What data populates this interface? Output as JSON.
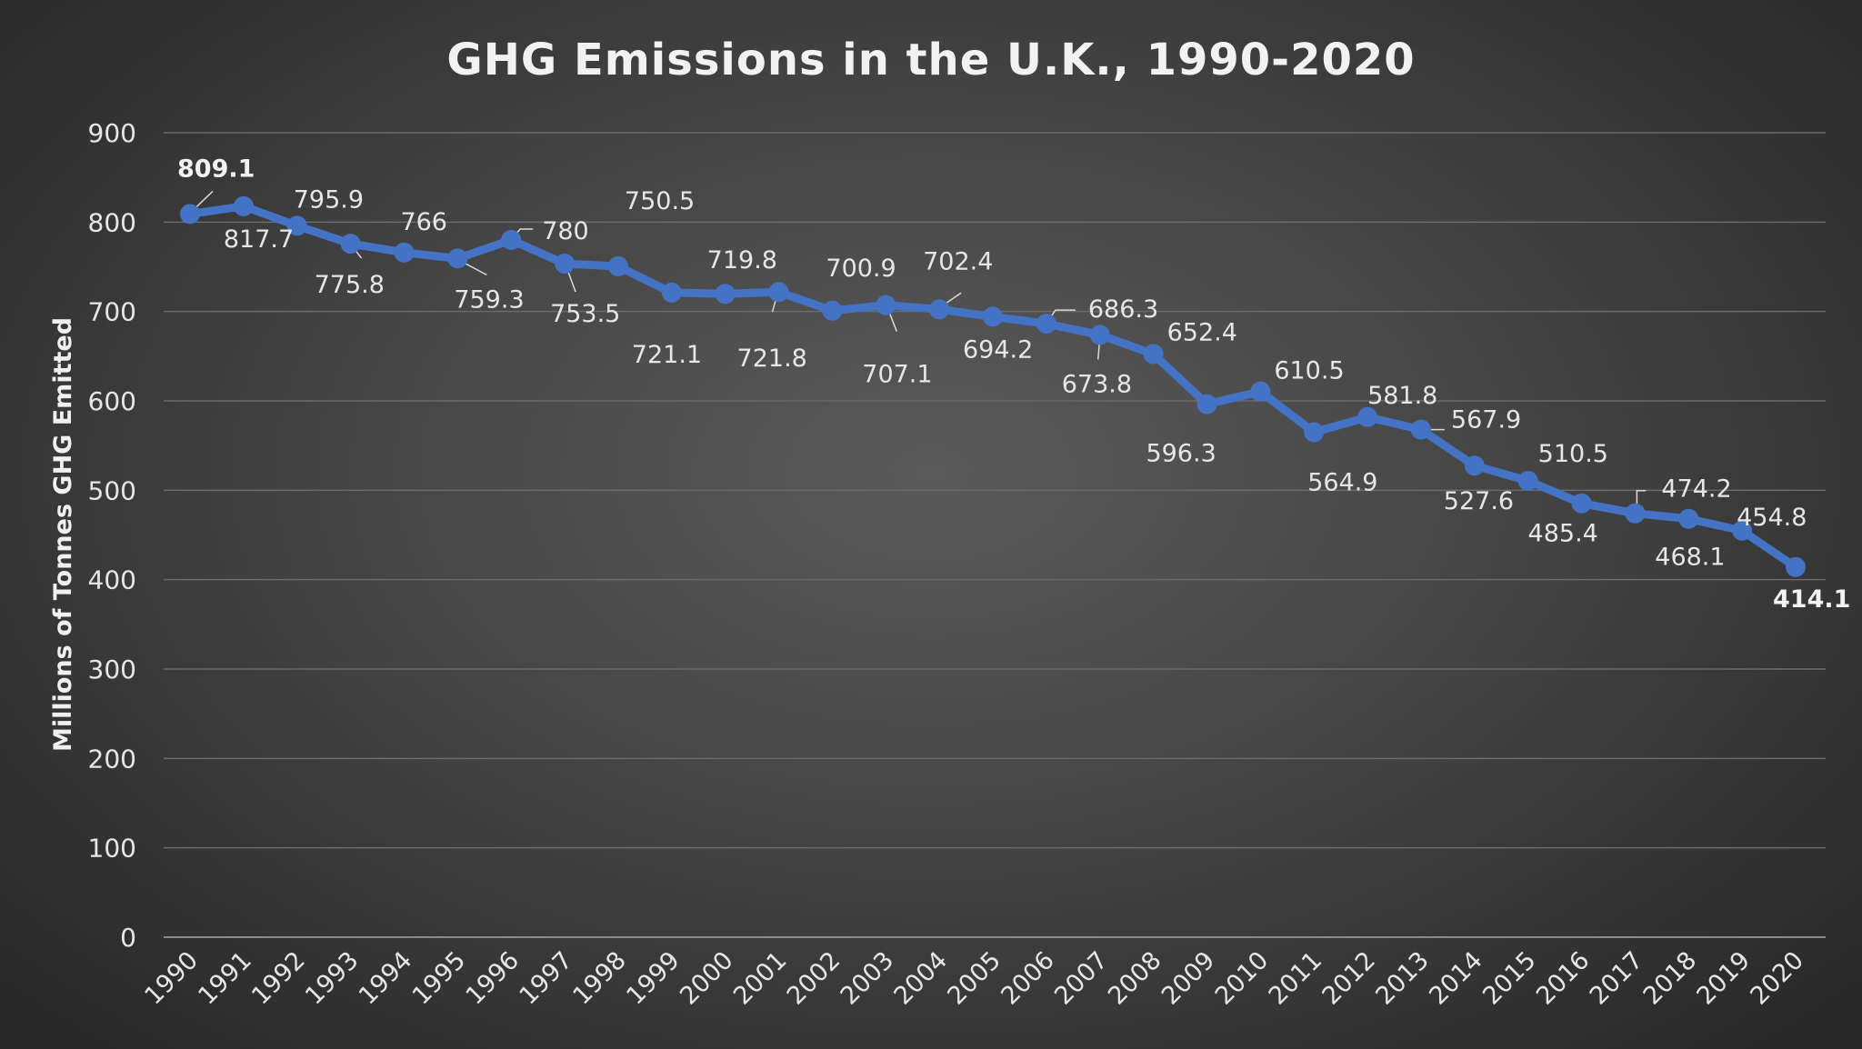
{
  "chart_data": {
    "type": "line",
    "title": "GHG Emissions in the U.K., 1990-2020",
    "xlabel": "",
    "ylabel": "Millions of Tonnes GHG Emitted",
    "ylim": [
      0,
      900
    ],
    "yticks": [
      0,
      100,
      200,
      300,
      400,
      500,
      600,
      700,
      800,
      900
    ],
    "grid": true,
    "legend": "none",
    "series_color": "#4472c4",
    "categories": [
      "1990",
      "1991",
      "1992",
      "1993",
      "1994",
      "1995",
      "1996",
      "1997",
      "1998",
      "1999",
      "2000",
      "2001",
      "2002",
      "2003",
      "2004",
      "2005",
      "2006",
      "2007",
      "2008",
      "2009",
      "2010",
      "2011",
      "2012",
      "2013",
      "2014",
      "2015",
      "2016",
      "2017",
      "2018",
      "2019",
      "2020"
    ],
    "values": [
      809.1,
      817.7,
      795.9,
      775.8,
      766,
      759.3,
      780,
      753.5,
      750.5,
      721.1,
      719.8,
      721.8,
      700.9,
      707.1,
      702.4,
      694.2,
      686.3,
      673.8,
      652.4,
      596.3,
      610.5,
      564.9,
      581.8,
      567.9,
      527.6,
      510.5,
      485.4,
      474.2,
      468.1,
      454.8,
      414.1
    ],
    "labels": [
      "809.1",
      "817.7",
      "795.9",
      "775.8",
      "766",
      "759.3",
      "780",
      "753.5",
      "750.5",
      "721.1",
      "719.8",
      "721.8",
      "700.9",
      "707.1",
      "702.4",
      "694.2",
      "686.3",
      "673.8",
      "652.4",
      "596.3",
      "610.5",
      "564.9",
      "581.8",
      "567.9",
      "527.6",
      "510.5",
      "485.4",
      "474.2",
      "468.1",
      "454.8",
      "414.1"
    ],
    "bold_labels": [
      "1990",
      "2020"
    ]
  }
}
